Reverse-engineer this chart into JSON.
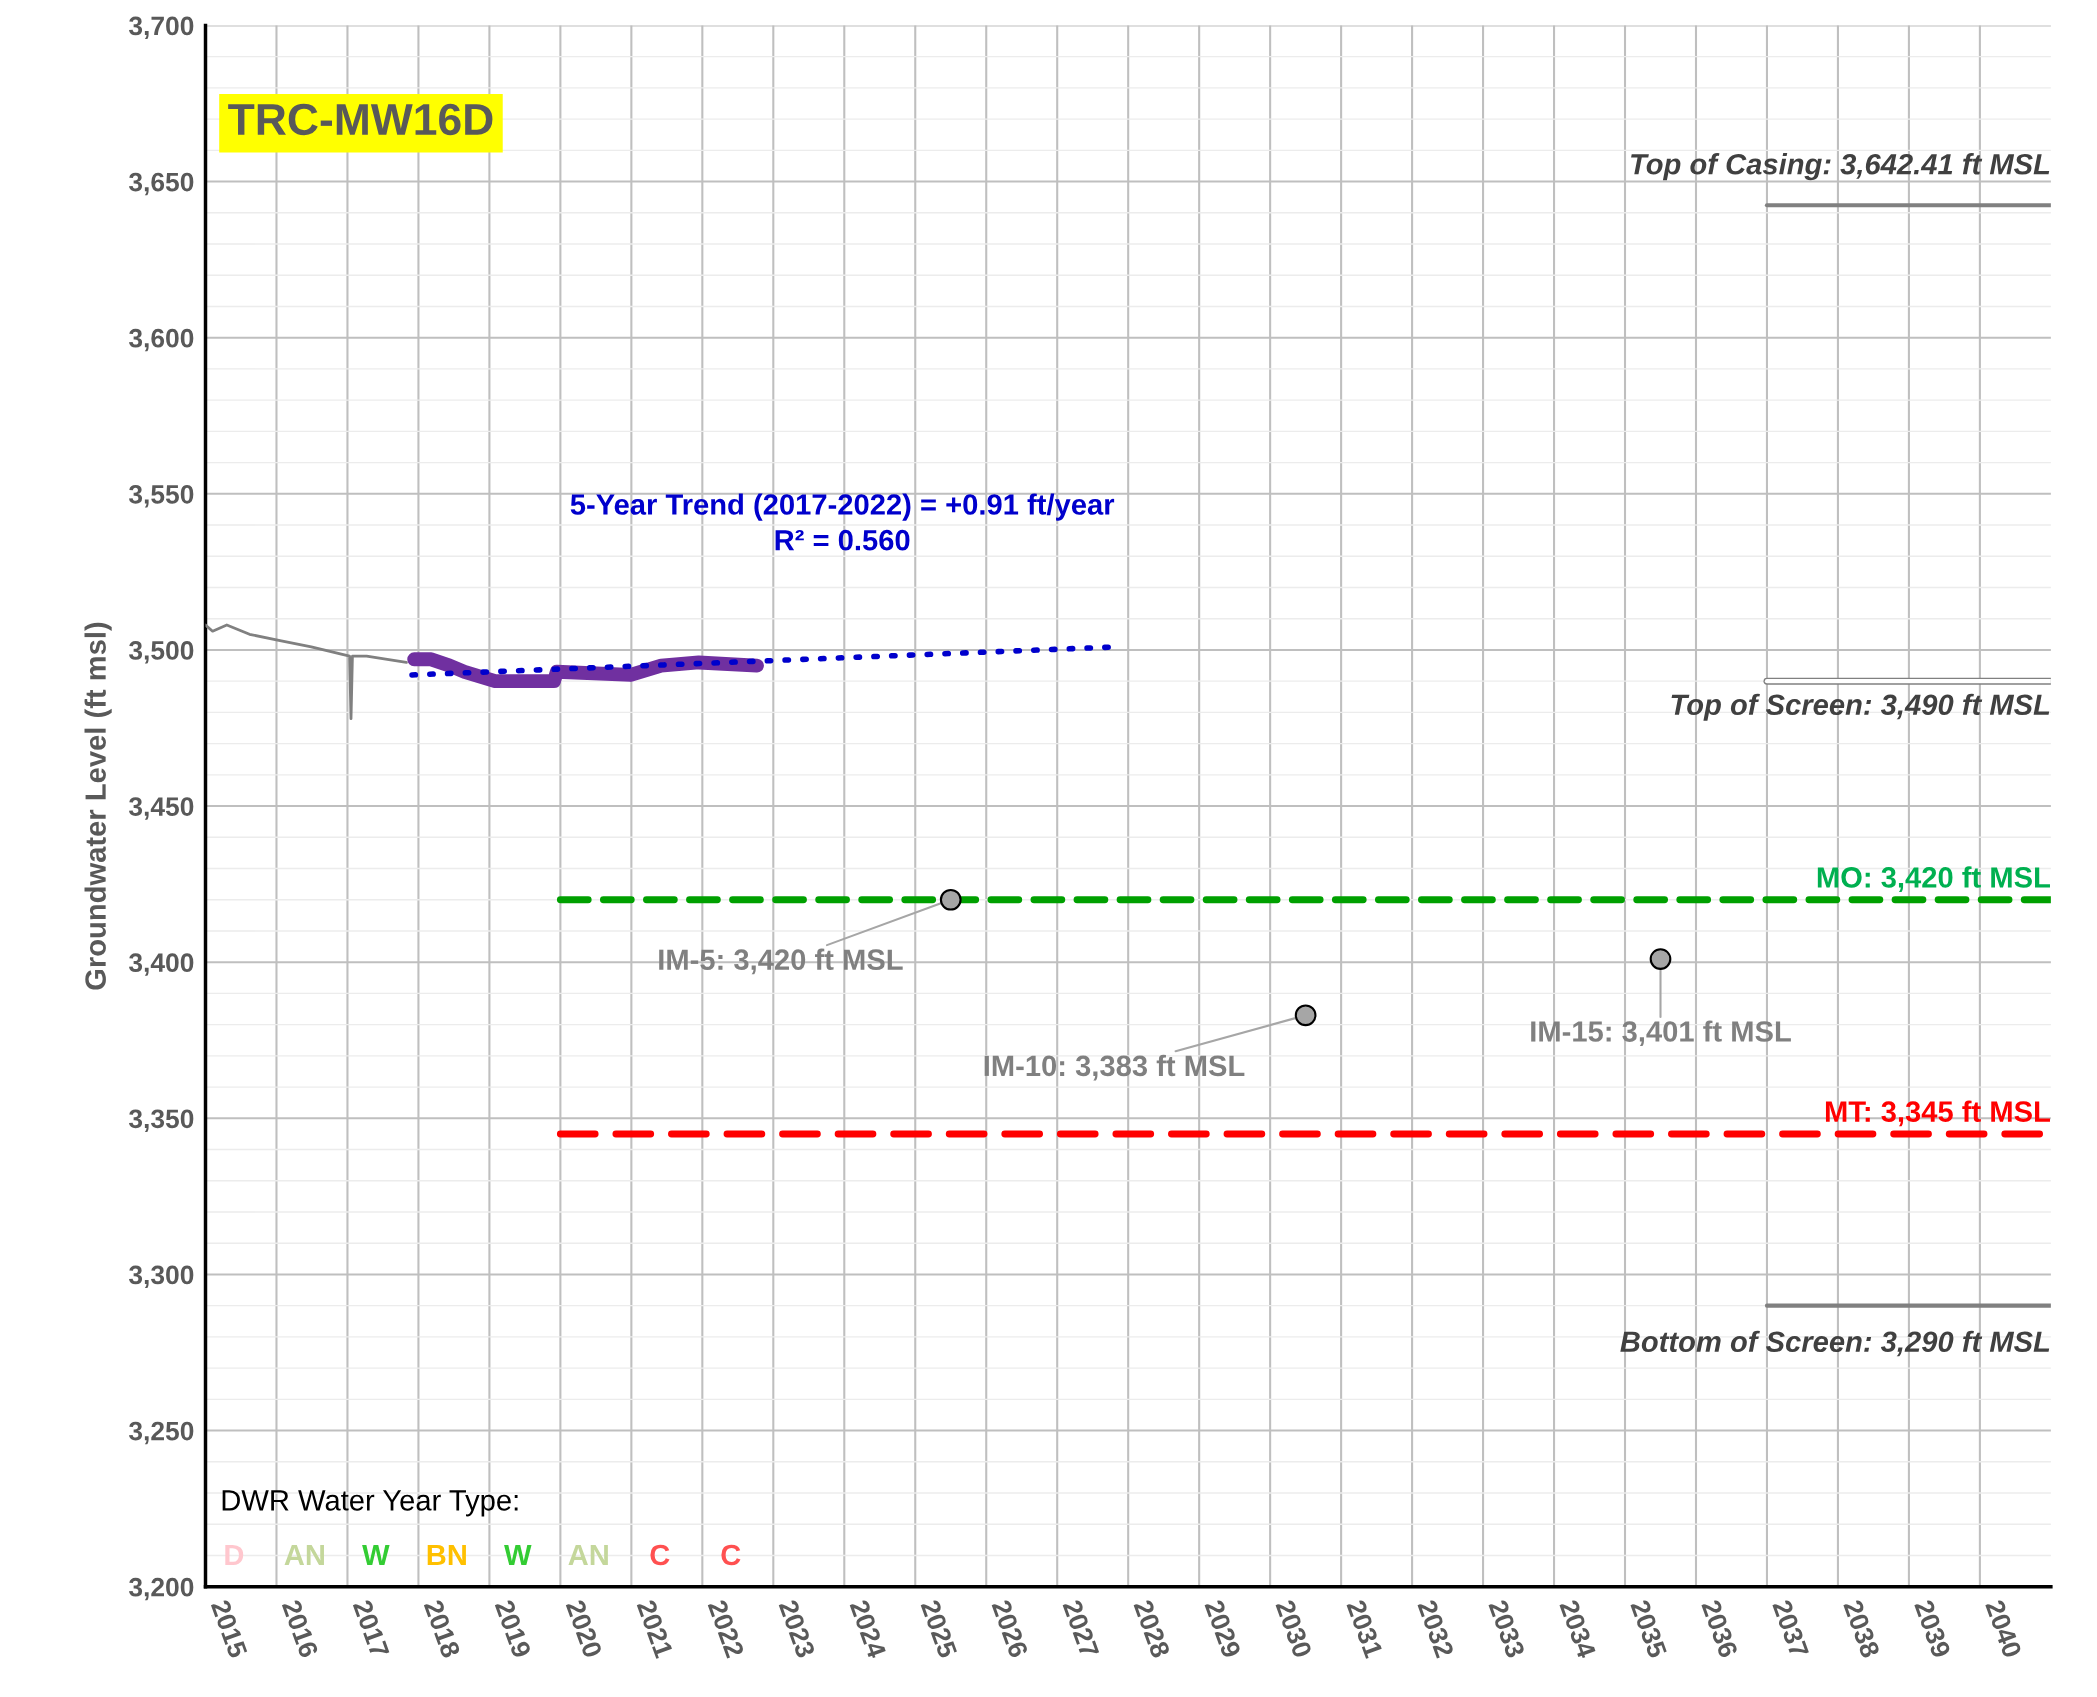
{
  "chart_data": {
    "type": "line",
    "title": "TRC-MW16D",
    "ylabel": "Groundwater Level (ft msl)",
    "xlim": [
      2015,
      2041
    ],
    "xticks": [
      2015,
      2016,
      2017,
      2018,
      2019,
      2020,
      2021,
      2022,
      2023,
      2024,
      2025,
      2026,
      2027,
      2028,
      2029,
      2030,
      2031,
      2032,
      2033,
      2034,
      2035,
      2036,
      2037,
      2038,
      2039,
      2040
    ],
    "ylim": [
      3200,
      3700
    ],
    "yticks": [
      {
        "value": 3200,
        "label": "3,200"
      },
      {
        "value": 3250,
        "label": "3,250"
      },
      {
        "value": 3300,
        "label": "3,300"
      },
      {
        "value": 3350,
        "label": "3,350"
      },
      {
        "value": 3400,
        "label": "3,400"
      },
      {
        "value": 3450,
        "label": "3,450"
      },
      {
        "value": 3500,
        "label": "3,500"
      },
      {
        "value": 3550,
        "label": "3,550"
      },
      {
        "value": 3600,
        "label": "3,600"
      },
      {
        "value": 3650,
        "label": "3,650"
      },
      {
        "value": 3700,
        "label": "3,700"
      }
    ],
    "grid": true,
    "series": [
      {
        "color": "#808080",
        "x": [
          2015.0,
          2015.1,
          2015.3,
          2015.62,
          2016.05,
          2016.49,
          2017.03,
          2017.05,
          2017.07,
          2017.27,
          2017.83
        ],
        "values": [
          3508,
          3506,
          3508,
          3505,
          3503,
          3501,
          3498,
          3478,
          3498,
          3498,
          3496
        ]
      },
      {
        "color": "#7030a0",
        "x": [
          2017.94,
          2018.18,
          2018.44,
          2018.65,
          2019.08,
          2019.91,
          2019.95,
          2020.99,
          2021.42,
          2021.95,
          2022.77
        ],
        "values": [
          3497,
          3497,
          3495,
          3493,
          3490,
          3490,
          3493,
          3492,
          3495,
          3496,
          3495
        ]
      },
      {
        "color": "#0000cc",
        "line_style": "dotted",
        "x": [
          2017.91,
          2027.86
        ],
        "values": [
          3492,
          3501
        ]
      },
      {
        "color": "#00a000",
        "line_style": "dashed",
        "x": [
          2020,
          2041
        ],
        "values": [
          3420,
          3420
        ]
      },
      {
        "color": "#ff0000",
        "line_style": "dashed",
        "x": [
          2020,
          2041
        ],
        "values": [
          3345,
          3345
        ]
      },
      {
        "color": "#808080",
        "x": [
          2037,
          2041
        ],
        "values": [
          3642.41,
          3642.41
        ]
      },
      {
        "color": "#ffffff",
        "x": [
          2037,
          2041
        ],
        "values": [
          3490,
          3490
        ]
      },
      {
        "color": "#808080",
        "x": [
          2037,
          2041
        ],
        "values": [
          3290,
          3290
        ]
      },
      {
        "type": "scatter",
        "color": "#a6a6a6",
        "marker": "circle",
        "x": [
          2025.5,
          2030.5,
          2035.5
        ],
        "values": [
          3420,
          3383,
          3401
        ]
      }
    ],
    "annotations": [
      "5-Year Trend (2017-2022) = +0.91 ft/year\nR² = 0.560",
      {
        "text": "Top of Casing: 3,642.41 ft MSL",
        "x": 2041,
        "y": 3642.41
      },
      {
        "text": "Top of Screen: 3,490 ft MSL",
        "x": 2041,
        "y": 3490
      },
      {
        "text": "MO: 3,420 ft MSL",
        "x": 2041,
        "y": 3420
      },
      {
        "text": "MT: 3,345 ft MSL",
        "x": 2041,
        "y": 3345
      },
      {
        "text": "Bottom of Screen: 3,290 ft MSL",
        "x": 2041,
        "y": 3290
      },
      {
        "text": "IM-5: 3,420 ft MSL",
        "x": 2025.5,
        "y": 3420
      },
      {
        "text": "IM-10: 3,383 ft MSL",
        "x": 2030.5,
        "y": 3383
      },
      {
        "text": "IM-15: 3,401 ft MSL",
        "x": 2035.5,
        "y": 3401
      },
      "DWR Water Year Type:",
      "D",
      "AN",
      "W",
      "BN",
      "W",
      "AN",
      "C",
      "C"
    ]
  }
}
